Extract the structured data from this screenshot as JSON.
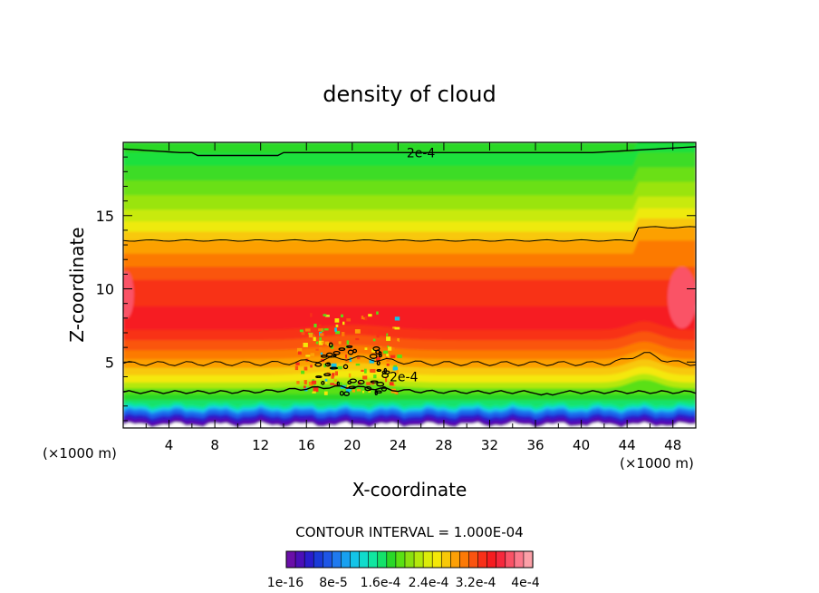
{
  "chart_data": {
    "type": "heatmap",
    "title": "density of cloud",
    "xlabel": "X-coordinate",
    "ylabel": "Z-coordinate",
    "x_unit_label": "(×1000 m)",
    "x_unit_label_right": "(×1000 m)",
    "xlim": [
      0,
      50
    ],
    "ylim": [
      0.5,
      20
    ],
    "x_ticks": [
      4,
      8,
      12,
      16,
      20,
      24,
      28,
      32,
      36,
      40,
      44,
      48
    ],
    "y_ticks": [
      5,
      10,
      15
    ],
    "contour_interval_text": "CONTOUR INTERVAL = 1.000E-04",
    "contour_labels": [
      "2e-4",
      "2e-4"
    ],
    "colorbar": {
      "colors": [
        "#6a0fa8",
        "#4b0fb8",
        "#2a1ccc",
        "#1a3ad8",
        "#1e56e6",
        "#1f7aef",
        "#18a0f0",
        "#14c4e8",
        "#10dccc",
        "#10e6a0",
        "#14e26a",
        "#2ad828",
        "#5ae014",
        "#8ae010",
        "#b4e80c",
        "#dcec0a",
        "#f4e808",
        "#f8c808",
        "#fca006",
        "#fc7a06",
        "#fa5410",
        "#f83018",
        "#f61c20",
        "#f6283c",
        "#fa5266",
        "#fc7a8c",
        "#fca0a8"
      ],
      "tick_labels": [
        "1e-16",
        "8e-5",
        "1.6e-4",
        "2.4e-4",
        "3.2e-4",
        "4e-4"
      ]
    },
    "grid": false,
    "legend": "colorbar-bottom"
  }
}
